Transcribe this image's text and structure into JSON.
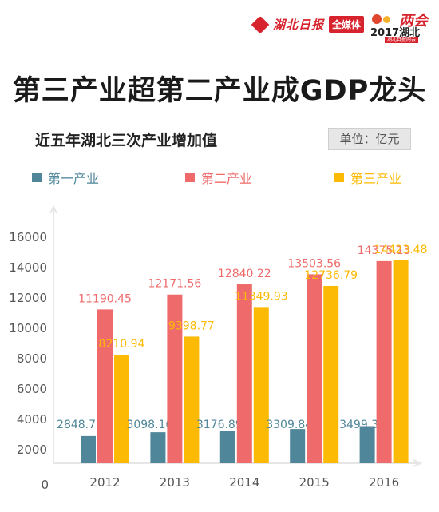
{
  "masthead": {
    "paper_name": "湖北日报",
    "media_tag": "全媒体",
    "badge_year": "2017湖北",
    "badge_mark": "两会",
    "badge_sub": "湖北日报两会"
  },
  "headline": "第三产业超第二产业成GDP龙头",
  "colors": {
    "primary": "#4f8699",
    "secondary": "#ef6b6b",
    "tertiary": "#fcba05",
    "axis": "#e6e6e6",
    "text": "#555555"
  },
  "chart_data": {
    "type": "bar",
    "title": "近五年湖北三次产业增加值",
    "unit_label": "单位：亿元",
    "categories": [
      "2012",
      "2013",
      "2014",
      "2015",
      "2016"
    ],
    "series": [
      {
        "name": "第一产业",
        "color": "#4f8699",
        "values": [
          2848.77,
          3098.16,
          3176.89,
          3309.84,
          3499.3
        ],
        "labels": [
          "2848.77",
          "3098.16",
          "3176.89",
          "3309.84",
          "3499.3"
        ]
      },
      {
        "name": "第二产业",
        "color": "#ef6b6b",
        "values": [
          11190.45,
          12171.56,
          12840.22,
          13503.56,
          14375.13
        ],
        "labels": [
          "11190.45",
          "12171.56",
          "12840.22",
          "13503.56",
          "14375.13"
        ]
      },
      {
        "name": "第三产业",
        "color": "#fcba05",
        "values": [
          8210.94,
          9398.77,
          11349.93,
          12736.79,
          14423.48
        ],
        "labels": [
          "8210.94",
          "9398.77",
          "11349.93",
          "12736.79",
          "14423.48"
        ]
      }
    ],
    "y_ticks": [
      "0",
      "2000",
      "4000",
      "6000",
      "8000",
      "10000",
      "12000",
      "14000",
      "16000"
    ],
    "ylim": [
      0,
      16000
    ],
    "legend_position": "top",
    "grid": false
  }
}
